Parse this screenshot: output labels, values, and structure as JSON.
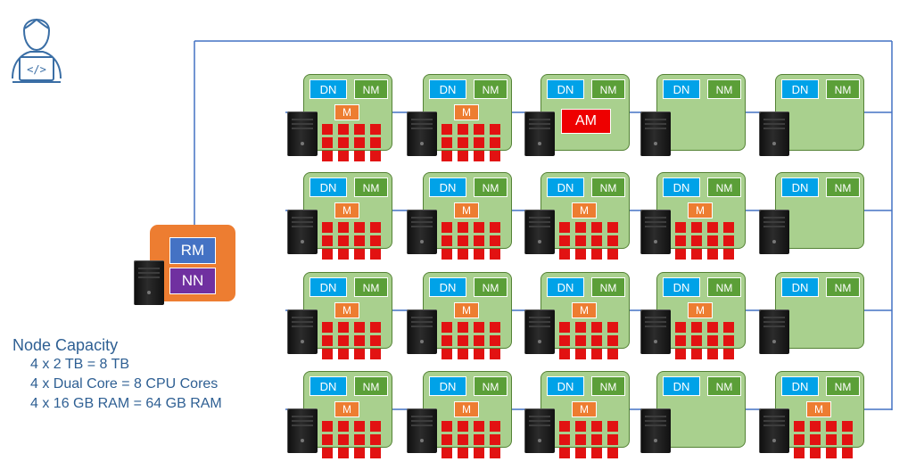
{
  "labels": {
    "data_node": "DN",
    "node_manager": "NM",
    "container": "M",
    "app_master": "AM",
    "resource_manager": "RM",
    "name_node": "NN"
  },
  "capacity": {
    "title": "Node Capacity",
    "lines": [
      "4 x 2 TB = 8 TB",
      "4 x Dual Core = 8 CPU Cores",
      "4 x 16 GB RAM = 64 GB RAM"
    ]
  },
  "colors": {
    "node_fill": "#a9d08e",
    "data_node": "#00a2e8",
    "node_manager": "#5b9f38",
    "container": "#ed7d31",
    "app_master": "#ee0000",
    "resource_manager_box": "#ed7d31",
    "resource_manager": "#4472c4",
    "name_node": "#7030a0",
    "network_line": "#4472c4",
    "text": "#2e5f93"
  },
  "icons": {
    "developer": "developer-laptop-icon",
    "server": "server-tower-icon"
  },
  "grid": {
    "rows": [
      [
        {
          "has_container": true,
          "has_app_master": false,
          "red_cells": 12
        },
        {
          "has_container": true,
          "has_app_master": false,
          "red_cells": 12
        },
        {
          "has_container": false,
          "has_app_master": true,
          "red_cells": 0
        },
        {
          "has_container": false,
          "has_app_master": false,
          "red_cells": 0
        },
        {
          "has_container": false,
          "has_app_master": false,
          "red_cells": 0
        }
      ],
      [
        {
          "has_container": true,
          "has_app_master": false,
          "red_cells": 12
        },
        {
          "has_container": true,
          "has_app_master": false,
          "red_cells": 12
        },
        {
          "has_container": true,
          "has_app_master": false,
          "red_cells": 12
        },
        {
          "has_container": true,
          "has_app_master": false,
          "red_cells": 12
        },
        {
          "has_container": false,
          "has_app_master": false,
          "red_cells": 0
        }
      ],
      [
        {
          "has_container": true,
          "has_app_master": false,
          "red_cells": 12
        },
        {
          "has_container": true,
          "has_app_master": false,
          "red_cells": 12
        },
        {
          "has_container": true,
          "has_app_master": false,
          "red_cells": 12
        },
        {
          "has_container": true,
          "has_app_master": false,
          "red_cells": 12
        },
        {
          "has_container": false,
          "has_app_master": false,
          "red_cells": 0
        }
      ],
      [
        {
          "has_container": true,
          "has_app_master": false,
          "red_cells": 12
        },
        {
          "has_container": true,
          "has_app_master": false,
          "red_cells": 12
        },
        {
          "has_container": true,
          "has_app_master": false,
          "red_cells": 12
        },
        {
          "has_container": false,
          "has_app_master": false,
          "red_cells": 0
        },
        {
          "has_container": true,
          "has_app_master": false,
          "red_cells": 12
        }
      ]
    ]
  }
}
